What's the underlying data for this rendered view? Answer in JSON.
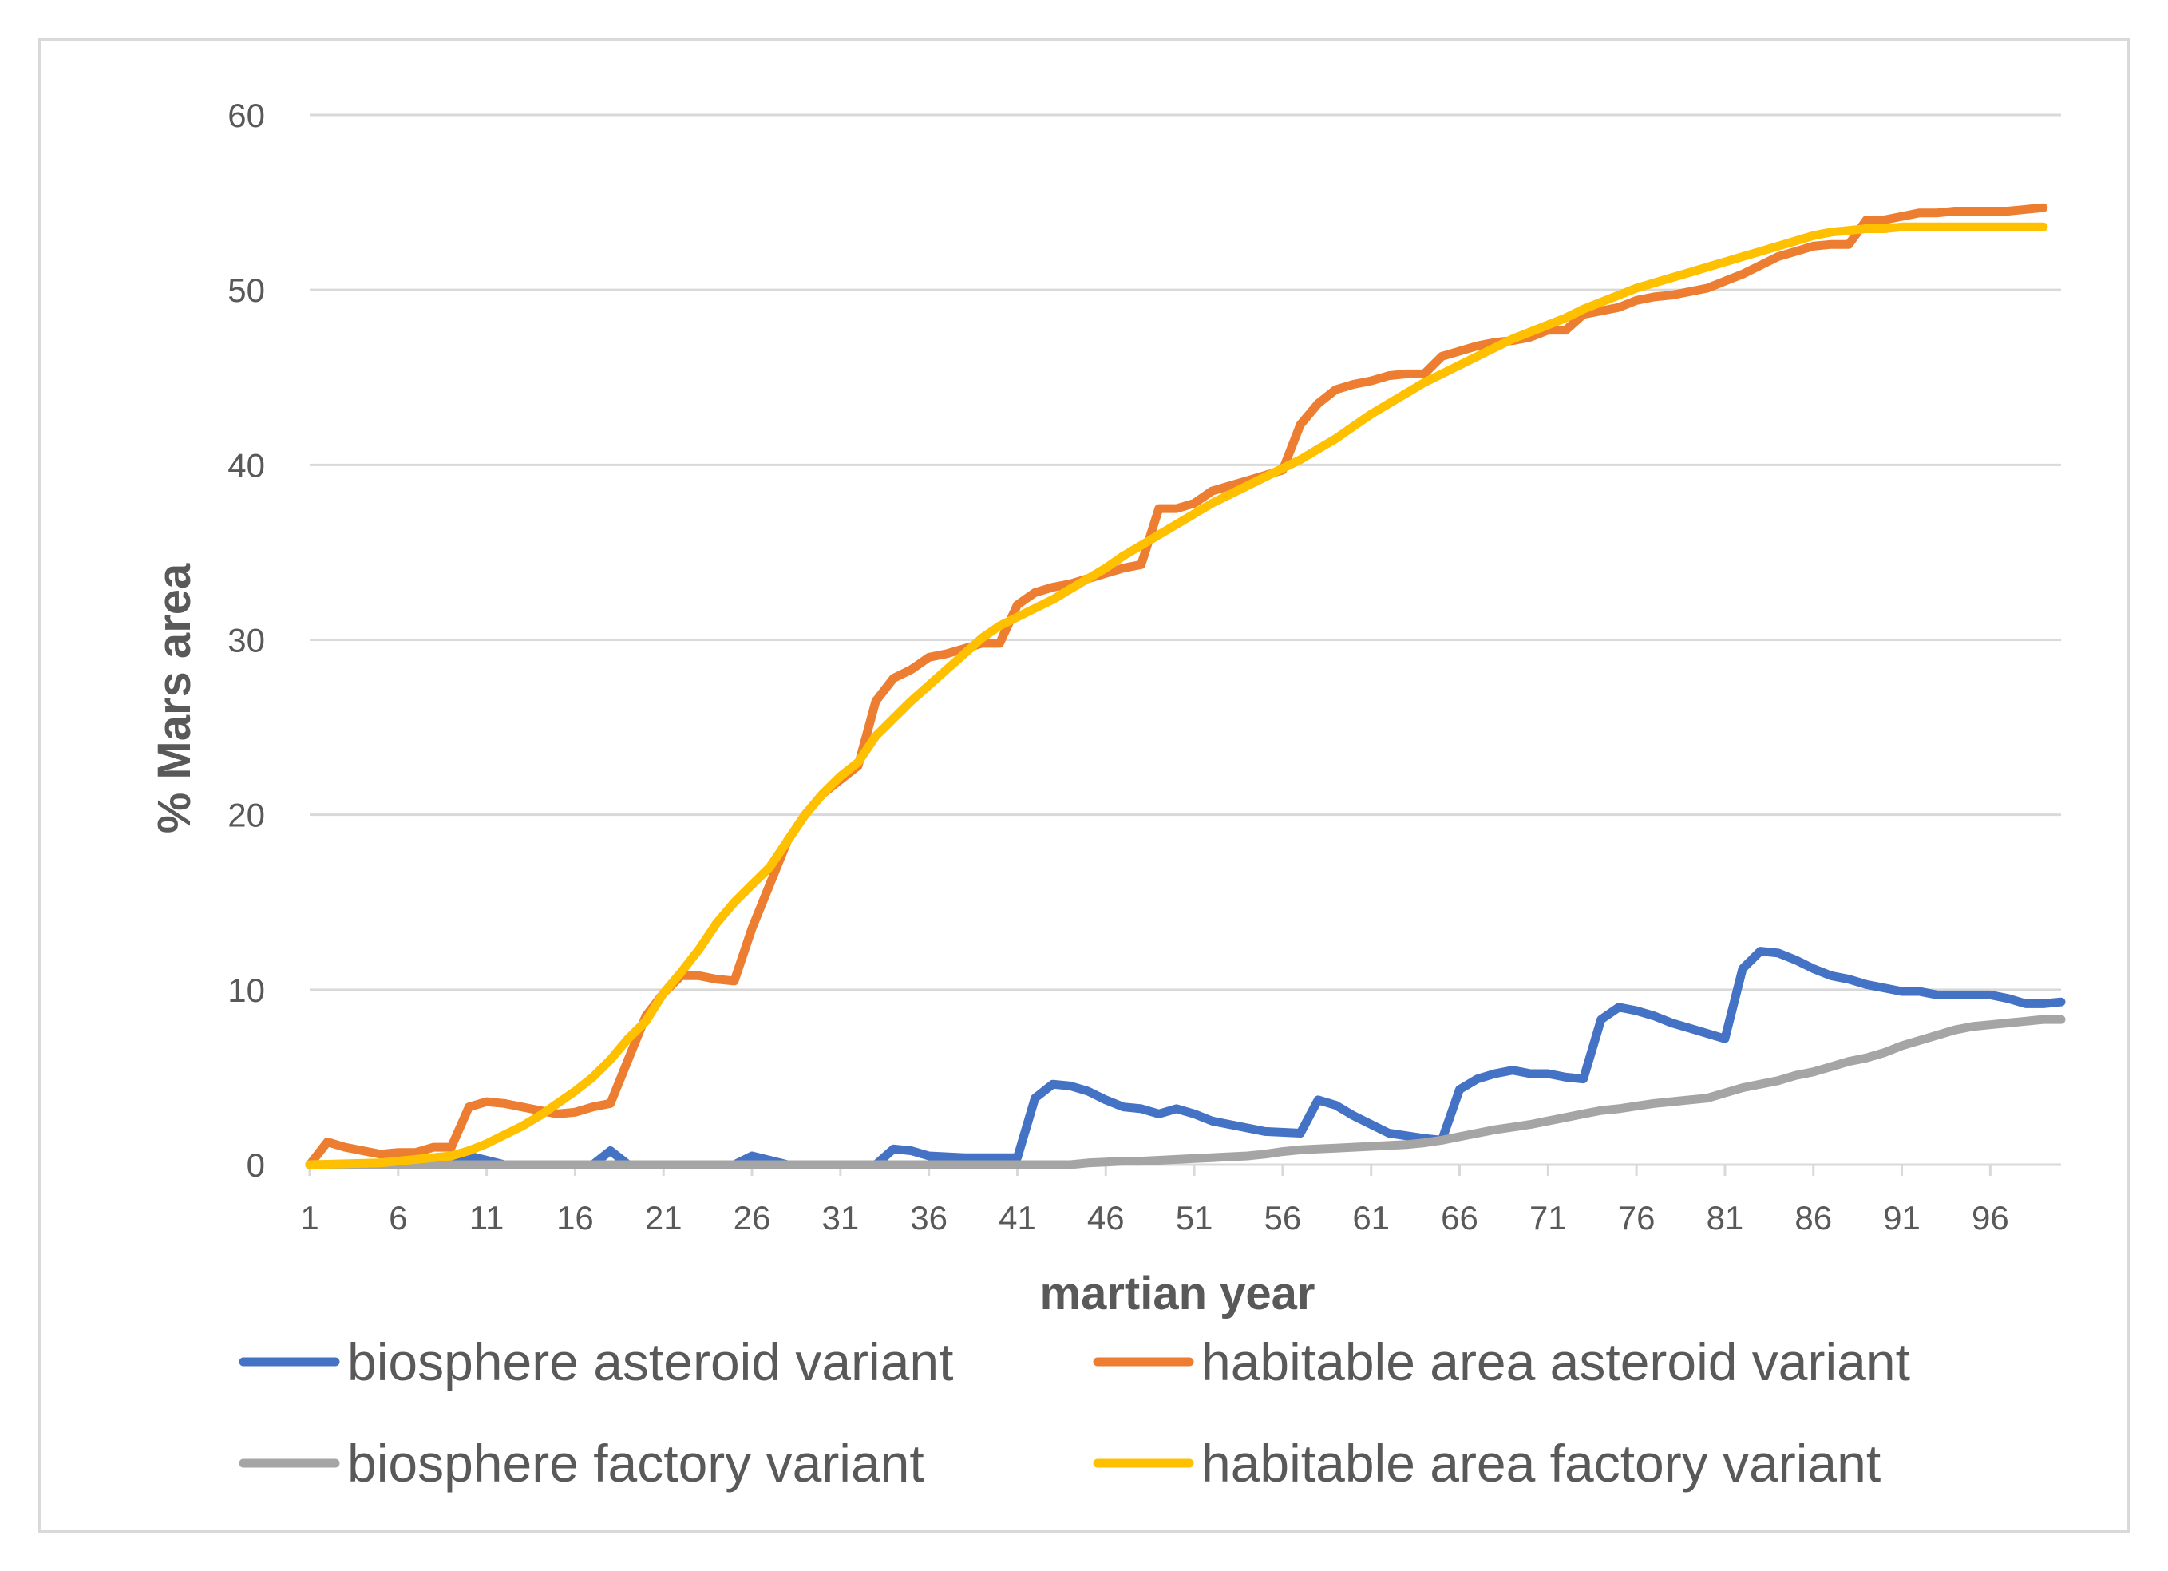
{
  "chart_data": {
    "type": "line",
    "title": "",
    "xlabel": "martian year",
    "ylabel": "% Mars area",
    "xlim": [
      1,
      100
    ],
    "ylim": [
      0,
      60
    ],
    "x_ticks": [
      1,
      6,
      11,
      16,
      21,
      26,
      31,
      36,
      41,
      46,
      51,
      56,
      61,
      66,
      71,
      76,
      81,
      86,
      91,
      96
    ],
    "y_ticks": [
      0,
      10,
      20,
      30,
      40,
      50,
      60
    ],
    "grid": "horizontal",
    "legend_position": "bottom",
    "series": [
      {
        "name": "biosphere asteroid variant",
        "color": "#4472C4",
        "points": [
          [
            1,
            0
          ],
          [
            9,
            0
          ],
          [
            10,
            0.5
          ],
          [
            12,
            0
          ],
          [
            17,
            0
          ],
          [
            18,
            0.8
          ],
          [
            19,
            0
          ],
          [
            25,
            0
          ],
          [
            26,
            0.5
          ],
          [
            28,
            0
          ],
          [
            33,
            0
          ],
          [
            34,
            0.9
          ],
          [
            35,
            0.8
          ],
          [
            36,
            0.5
          ],
          [
            38,
            0.4
          ],
          [
            41,
            0.4
          ],
          [
            42,
            3.8
          ],
          [
            43,
            4.6
          ],
          [
            44,
            4.5
          ],
          [
            45,
            4.2
          ],
          [
            46,
            3.7
          ],
          [
            47,
            3.3
          ],
          [
            48,
            3.2
          ],
          [
            49,
            2.9
          ],
          [
            50,
            3.2
          ],
          [
            51,
            2.9
          ],
          [
            52,
            2.5
          ],
          [
            53,
            2.3
          ],
          [
            54,
            2.1
          ],
          [
            55,
            1.9
          ],
          [
            57,
            1.8
          ],
          [
            58,
            3.7
          ],
          [
            59,
            3.4
          ],
          [
            60,
            2.8
          ],
          [
            61,
            2.3
          ],
          [
            62,
            1.8
          ],
          [
            64,
            1.5
          ],
          [
            65,
            1.4
          ],
          [
            66,
            4.3
          ],
          [
            67,
            4.9
          ],
          [
            68,
            5.2
          ],
          [
            69,
            5.4
          ],
          [
            70,
            5.2
          ],
          [
            71,
            5.2
          ],
          [
            72,
            5.0
          ],
          [
            73,
            4.9
          ],
          [
            74,
            8.3
          ],
          [
            75,
            9.0
          ],
          [
            76,
            8.8
          ],
          [
            77,
            8.5
          ],
          [
            78,
            8.1
          ],
          [
            79,
            7.8
          ],
          [
            80,
            7.5
          ],
          [
            81,
            7.2
          ],
          [
            82,
            11.2
          ],
          [
            83,
            12.2
          ],
          [
            84,
            12.1
          ],
          [
            85,
            11.7
          ],
          [
            86,
            11.2
          ],
          [
            87,
            10.8
          ],
          [
            88,
            10.6
          ],
          [
            89,
            10.3
          ],
          [
            90,
            10.1
          ],
          [
            91,
            9.9
          ],
          [
            92,
            9.9
          ],
          [
            93,
            9.7
          ],
          [
            96,
            9.7
          ],
          [
            97,
            9.5
          ],
          [
            98,
            9.2
          ],
          [
            99,
            9.2
          ],
          [
            100,
            9.3
          ]
        ]
      },
      {
        "name": "habitable area asteroid variant",
        "color": "#ED7D31",
        "points": [
          [
            1,
            0
          ],
          [
            2,
            1.3
          ],
          [
            3,
            1.0
          ],
          [
            4,
            0.8
          ],
          [
            5,
            0.6
          ],
          [
            6,
            0.7
          ],
          [
            7,
            0.7
          ],
          [
            8,
            1.0
          ],
          [
            9,
            1.0
          ],
          [
            10,
            3.3
          ],
          [
            11,
            3.6
          ],
          [
            12,
            3.5
          ],
          [
            13,
            3.3
          ],
          [
            14,
            3.1
          ],
          [
            15,
            2.9
          ],
          [
            16,
            3.0
          ],
          [
            17,
            3.3
          ],
          [
            18,
            3.5
          ],
          [
            19,
            6.0
          ],
          [
            20,
            8.5
          ],
          [
            21,
            9.8
          ],
          [
            22,
            10.8
          ],
          [
            23,
            10.8
          ],
          [
            24,
            10.6
          ],
          [
            25,
            10.5
          ],
          [
            26,
            13.5
          ],
          [
            27,
            16.0
          ],
          [
            28,
            18.5
          ],
          [
            29,
            20.0
          ],
          [
            30,
            21.2
          ],
          [
            31,
            22.0
          ],
          [
            32,
            22.8
          ],
          [
            33,
            26.5
          ],
          [
            34,
            27.8
          ],
          [
            35,
            28.3
          ],
          [
            36,
            29.0
          ],
          [
            37,
            29.2
          ],
          [
            38,
            29.5
          ],
          [
            39,
            29.8
          ],
          [
            40,
            29.8
          ],
          [
            41,
            32.0
          ],
          [
            42,
            32.7
          ],
          [
            43,
            33.0
          ],
          [
            44,
            33.2
          ],
          [
            45,
            33.5
          ],
          [
            46,
            33.8
          ],
          [
            47,
            34.1
          ],
          [
            48,
            34.3
          ],
          [
            49,
            37.5
          ],
          [
            50,
            37.5
          ],
          [
            51,
            37.8
          ],
          [
            52,
            38.5
          ],
          [
            53,
            38.8
          ],
          [
            54,
            39.1
          ],
          [
            55,
            39.4
          ],
          [
            56,
            39.7
          ],
          [
            57,
            42.3
          ],
          [
            58,
            43.5
          ],
          [
            59,
            44.3
          ],
          [
            60,
            44.6
          ],
          [
            61,
            44.8
          ],
          [
            62,
            45.1
          ],
          [
            63,
            45.2
          ],
          [
            64,
            45.2
          ],
          [
            65,
            46.2
          ],
          [
            66,
            46.5
          ],
          [
            67,
            46.8
          ],
          [
            68,
            47.0
          ],
          [
            69,
            47.1
          ],
          [
            70,
            47.3
          ],
          [
            71,
            47.7
          ],
          [
            72,
            47.7
          ],
          [
            73,
            48.6
          ],
          [
            74,
            48.8
          ],
          [
            75,
            49.0
          ],
          [
            76,
            49.4
          ],
          [
            77,
            49.6
          ],
          [
            78,
            49.7
          ],
          [
            79,
            49.9
          ],
          [
            80,
            50.1
          ],
          [
            81,
            50.5
          ],
          [
            82,
            50.9
          ],
          [
            83,
            51.4
          ],
          [
            84,
            51.9
          ],
          [
            85,
            52.2
          ],
          [
            86,
            52.5
          ],
          [
            87,
            52.6
          ],
          [
            88,
            52.6
          ],
          [
            89,
            54.0
          ],
          [
            90,
            54.0
          ],
          [
            91,
            54.2
          ],
          [
            92,
            54.4
          ],
          [
            93,
            54.4
          ],
          [
            94,
            54.5
          ],
          [
            95,
            54.5
          ],
          [
            96,
            54.5
          ],
          [
            97,
            54.5
          ],
          [
            98,
            54.6
          ],
          [
            99,
            54.7
          ]
        ]
      },
      {
        "name": "biosphere factory variant",
        "color": "#A5A5A5",
        "points": [
          [
            1,
            0
          ],
          [
            44,
            0
          ],
          [
            45,
            0.1
          ],
          [
            46,
            0.15
          ],
          [
            47,
            0.2
          ],
          [
            48,
            0.2
          ],
          [
            49,
            0.25
          ],
          [
            50,
            0.3
          ],
          [
            51,
            0.35
          ],
          [
            52,
            0.4
          ],
          [
            53,
            0.45
          ],
          [
            54,
            0.5
          ],
          [
            55,
            0.6
          ],
          [
            56,
            0.75
          ],
          [
            57,
            0.85
          ],
          [
            58,
            0.9
          ],
          [
            59,
            0.95
          ],
          [
            60,
            1.0
          ],
          [
            61,
            1.05
          ],
          [
            62,
            1.1
          ],
          [
            63,
            1.15
          ],
          [
            64,
            1.25
          ],
          [
            65,
            1.4
          ],
          [
            66,
            1.6
          ],
          [
            67,
            1.8
          ],
          [
            68,
            2.0
          ],
          [
            69,
            2.15
          ],
          [
            70,
            2.3
          ],
          [
            71,
            2.5
          ],
          [
            72,
            2.7
          ],
          [
            73,
            2.9
          ],
          [
            74,
            3.1
          ],
          [
            75,
            3.2
          ],
          [
            76,
            3.35
          ],
          [
            77,
            3.5
          ],
          [
            78,
            3.6
          ],
          [
            79,
            3.7
          ],
          [
            80,
            3.8
          ],
          [
            81,
            4.1
          ],
          [
            82,
            4.4
          ],
          [
            83,
            4.6
          ],
          [
            84,
            4.8
          ],
          [
            85,
            5.1
          ],
          [
            86,
            5.3
          ],
          [
            87,
            5.6
          ],
          [
            88,
            5.9
          ],
          [
            89,
            6.1
          ],
          [
            90,
            6.4
          ],
          [
            91,
            6.8
          ],
          [
            92,
            7.1
          ],
          [
            93,
            7.4
          ],
          [
            94,
            7.7
          ],
          [
            95,
            7.9
          ],
          [
            96,
            8.0
          ],
          [
            97,
            8.1
          ],
          [
            98,
            8.2
          ],
          [
            99,
            8.3
          ],
          [
            100,
            8.3
          ]
        ]
      },
      {
        "name": "habitable area factory variant",
        "color": "#FFC000",
        "points": [
          [
            1,
            0
          ],
          [
            5,
            0.1
          ],
          [
            7,
            0.3
          ],
          [
            9,
            0.5
          ],
          [
            10,
            0.8
          ],
          [
            11,
            1.2
          ],
          [
            12,
            1.7
          ],
          [
            13,
            2.2
          ],
          [
            14,
            2.8
          ],
          [
            15,
            3.5
          ],
          [
            16,
            4.2
          ],
          [
            17,
            5.0
          ],
          [
            18,
            6.0
          ],
          [
            19,
            7.2
          ],
          [
            20,
            8.2
          ],
          [
            21,
            9.8
          ],
          [
            22,
            11.0
          ],
          [
            23,
            12.3
          ],
          [
            24,
            13.8
          ],
          [
            25,
            15.0
          ],
          [
            26,
            16.0
          ],
          [
            27,
            17.0
          ],
          [
            28,
            18.5
          ],
          [
            29,
            20.0
          ],
          [
            30,
            21.2
          ],
          [
            31,
            22.2
          ],
          [
            32,
            23.0
          ],
          [
            33,
            24.5
          ],
          [
            34,
            25.5
          ],
          [
            35,
            26.5
          ],
          [
            36,
            27.4
          ],
          [
            37,
            28.3
          ],
          [
            38,
            29.2
          ],
          [
            39,
            30.1
          ],
          [
            40,
            30.8
          ],
          [
            41,
            31.3
          ],
          [
            42,
            31.8
          ],
          [
            43,
            32.3
          ],
          [
            44,
            32.9
          ],
          [
            45,
            33.5
          ],
          [
            46,
            34.1
          ],
          [
            47,
            34.8
          ],
          [
            48,
            35.4
          ],
          [
            49,
            36.0
          ],
          [
            50,
            36.6
          ],
          [
            51,
            37.2
          ],
          [
            52,
            37.8
          ],
          [
            53,
            38.3
          ],
          [
            54,
            38.8
          ],
          [
            55,
            39.3
          ],
          [
            56,
            39.8
          ],
          [
            57,
            40.3
          ],
          [
            58,
            40.9
          ],
          [
            59,
            41.5
          ],
          [
            60,
            42.2
          ],
          [
            61,
            42.9
          ],
          [
            62,
            43.5
          ],
          [
            63,
            44.1
          ],
          [
            64,
            44.7
          ],
          [
            65,
            45.2
          ],
          [
            66,
            45.7
          ],
          [
            67,
            46.2
          ],
          [
            68,
            46.7
          ],
          [
            69,
            47.2
          ],
          [
            70,
            47.6
          ],
          [
            71,
            48.0
          ],
          [
            72,
            48.4
          ],
          [
            73,
            48.9
          ],
          [
            74,
            49.3
          ],
          [
            75,
            49.7
          ],
          [
            76,
            50.1
          ],
          [
            77,
            50.4
          ],
          [
            78,
            50.7
          ],
          [
            79,
            51.0
          ],
          [
            80,
            51.3
          ],
          [
            81,
            51.6
          ],
          [
            82,
            51.9
          ],
          [
            83,
            52.2
          ],
          [
            84,
            52.5
          ],
          [
            85,
            52.8
          ],
          [
            86,
            53.1
          ],
          [
            87,
            53.3
          ],
          [
            88,
            53.4
          ],
          [
            89,
            53.5
          ],
          [
            90,
            53.5
          ],
          [
            91,
            53.6
          ],
          [
            92,
            53.6
          ],
          [
            93,
            53.6
          ],
          [
            94,
            53.6
          ],
          [
            95,
            53.6
          ],
          [
            96,
            53.6
          ],
          [
            97,
            53.6
          ],
          [
            98,
            53.6
          ],
          [
            99,
            53.6
          ]
        ]
      }
    ]
  }
}
